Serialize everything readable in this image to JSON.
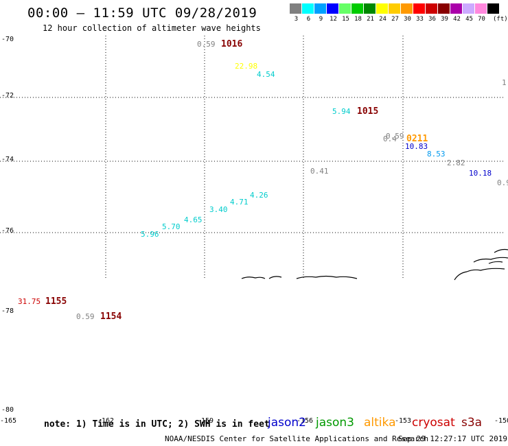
{
  "header": {
    "title": "00:00 — 11:59 UTC 09/28/2019",
    "subtitle": "12 hour collection of altimeter wave heights"
  },
  "scale": {
    "unit": "(ft)",
    "swatches": [
      {
        "color": "#808080",
        "label": "3"
      },
      {
        "color": "#00ffff",
        "label": "6"
      },
      {
        "color": "#00a0ff",
        "label": "9"
      },
      {
        "color": "#0000ff",
        "label": "12"
      },
      {
        "color": "#66ff66",
        "label": "15"
      },
      {
        "color": "#00cc00",
        "label": "18"
      },
      {
        "color": "#008800",
        "label": "21"
      },
      {
        "color": "#ffff00",
        "label": "24"
      },
      {
        "color": "#ffcc00",
        "label": "27"
      },
      {
        "color": "#ff9900",
        "label": "30"
      },
      {
        "color": "#ff0000",
        "label": "33"
      },
      {
        "color": "#cc0000",
        "label": "36"
      },
      {
        "color": "#880000",
        "label": "39"
      },
      {
        "color": "#aa00aa",
        "label": "42"
      },
      {
        "color": "#ccaaff",
        "label": "45"
      },
      {
        "color": "#ff88dd",
        "label": "70"
      },
      {
        "color": "#000000",
        "label": ""
      }
    ]
  },
  "axes": {
    "lat_labels": [
      "-70",
      "-72",
      "-74",
      "-76",
      "-78",
      "-80"
    ],
    "lon_labels": [
      "-165",
      "-162",
      "-159",
      "-156",
      "-153",
      "-150"
    ]
  },
  "observations": [
    {
      "text": "0.59",
      "color": "#808080",
      "kind": "val"
    },
    {
      "text": "1016",
      "color": "#880000",
      "kind": "time"
    },
    {
      "text": "22.98",
      "color": "#ffff00",
      "kind": "val"
    },
    {
      "text": "4.54",
      "color": "#00cccc",
      "kind": "val"
    },
    {
      "text": "5.94",
      "color": "#00cccc",
      "kind": "val"
    },
    {
      "text": "1015",
      "color": "#880000",
      "kind": "time"
    },
    {
      "text": "0.59",
      "color": "#808080",
      "kind": "val"
    },
    {
      "text": "0.4",
      "color": "#808080",
      "kind": "val"
    },
    {
      "text": "0211",
      "color": "#ff9900",
      "kind": "time"
    },
    {
      "text": "10.83",
      "color": "#0000cc",
      "kind": "val"
    },
    {
      "text": "8.53",
      "color": "#0099ee",
      "kind": "val"
    },
    {
      "text": "2.82",
      "color": "#808080",
      "kind": "val"
    },
    {
      "text": "10.18",
      "color": "#0000cc",
      "kind": "val"
    },
    {
      "text": "0.9",
      "color": "#808080",
      "kind": "val"
    },
    {
      "text": "1.",
      "color": "#808080",
      "kind": "val"
    },
    {
      "text": "0.41",
      "color": "#808080",
      "kind": "val"
    },
    {
      "text": "4.26",
      "color": "#00cccc",
      "kind": "val"
    },
    {
      "text": "4.71",
      "color": "#00cccc",
      "kind": "val"
    },
    {
      "text": "3.40",
      "color": "#00cccc",
      "kind": "val"
    },
    {
      "text": "4.65",
      "color": "#00cccc",
      "kind": "val"
    },
    {
      "text": "5.70",
      "color": "#00cccc",
      "kind": "val"
    },
    {
      "text": "5.96",
      "color": "#00cccc",
      "kind": "val"
    },
    {
      "text": "31.75",
      "color": "#cc0000",
      "kind": "val"
    },
    {
      "text": "1155",
      "color": "#880000",
      "kind": "time"
    },
    {
      "text": "0.59",
      "color": "#808080",
      "kind": "val"
    },
    {
      "text": "1154",
      "color": "#880000",
      "kind": "time"
    }
  ],
  "footer": {
    "note": "note: 1) Time is in UTC; 2) SWH is in feet",
    "missions": [
      {
        "name": "jason2",
        "color": "#0000cc"
      },
      {
        "name": "jason3",
        "color": "#009900"
      },
      {
        "name": "altika",
        "color": "#ff9900"
      },
      {
        "name": "cryosat",
        "color": "#cc0000"
      },
      {
        "name": "s3a",
        "color": "#880000"
      }
    ],
    "credit": "NOAA/NESDIS Center for Satellite Applications and Research",
    "stamp": "Sep 29 12:27:17 UTC 2019"
  }
}
